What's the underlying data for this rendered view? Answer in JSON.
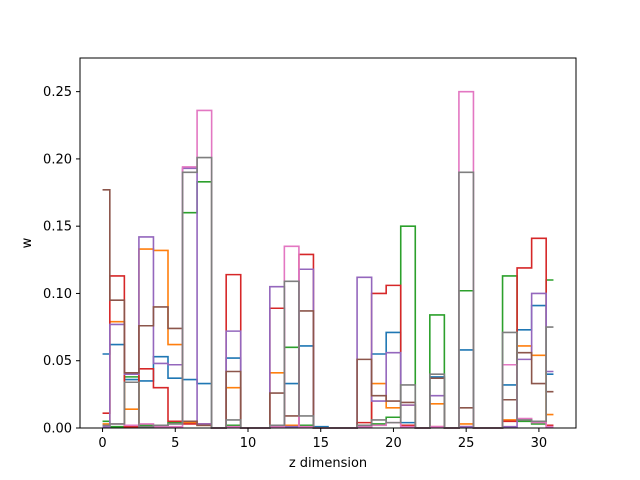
{
  "chart_data": {
    "type": "line",
    "drawstyle": "steps-mid",
    "xlabel": "z dimension",
    "ylabel": "w",
    "xlim": [
      -1.55,
      32.55
    ],
    "ylim": [
      0,
      0.275
    ],
    "xticks": [
      0,
      5,
      10,
      15,
      20,
      25,
      30
    ],
    "yticks": [
      0.0,
      0.05,
      0.1,
      0.15,
      0.2,
      0.25
    ],
    "ytick_labels": [
      "0.00",
      "0.05",
      "0.10",
      "0.15",
      "0.20",
      "0.25"
    ],
    "grid": false,
    "x": [
      0,
      1,
      2,
      3,
      4,
      5,
      6,
      7,
      8,
      9,
      10,
      11,
      12,
      13,
      14,
      15,
      16,
      17,
      18,
      19,
      20,
      21,
      22,
      23,
      24,
      25,
      26,
      27,
      28,
      29,
      30,
      31
    ],
    "series": [
      {
        "color": "#1f77b4",
        "values": [
          0.055,
          0.062,
          0.036,
          0.035,
          0.053,
          0.037,
          0.036,
          0.033,
          0,
          0.052,
          0,
          0,
          0.002,
          0.033,
          0.061,
          0.001,
          0,
          0,
          0.001,
          0.055,
          0.071,
          0.004,
          0,
          0.038,
          0,
          0.058,
          0,
          0,
          0.032,
          0.073,
          0.091,
          0.04
        ]
      },
      {
        "color": "#ff7f0e",
        "values": [
          0.003,
          0.079,
          0.014,
          0.133,
          0.132,
          0.062,
          0.004,
          0.002,
          0,
          0.03,
          0,
          0,
          0.041,
          0.002,
          0.001,
          0,
          0,
          0,
          0.001,
          0.033,
          0.015,
          0.017,
          0,
          0.018,
          0,
          0.003,
          0,
          0,
          0.006,
          0.061,
          0.054,
          0.01
        ]
      },
      {
        "color": "#2ca02c",
        "values": [
          0.005,
          0.001,
          0.038,
          0.002,
          0.002,
          0.004,
          0.16,
          0.183,
          0,
          0.002,
          0,
          0,
          0.001,
          0.06,
          0.002,
          0,
          0,
          0,
          0.001,
          0.003,
          0.008,
          0.15,
          0,
          0.084,
          0,
          0.102,
          0,
          0,
          0.113,
          0.005,
          0.003,
          0.11
        ]
      },
      {
        "color": "#d62728",
        "values": [
          0.011,
          0.113,
          0.001,
          0.044,
          0.03,
          0.005,
          0.003,
          0.003,
          0,
          0.114,
          0,
          0,
          0.089,
          0.001,
          0.129,
          0,
          0,
          0,
          0.004,
          0.1,
          0.106,
          0.002,
          0,
          0.001,
          0,
          0.001,
          0,
          0,
          0.005,
          0.119,
          0.141,
          0.002
        ]
      },
      {
        "color": "#9467bd",
        "values": [
          0.001,
          0.077,
          0.04,
          0.142,
          0.048,
          0.047,
          0.193,
          0.003,
          0,
          0.072,
          0,
          0,
          0.105,
          0.001,
          0.118,
          0,
          0,
          0,
          0.112,
          0.02,
          0.056,
          0.017,
          0,
          0.024,
          0,
          0.001,
          0,
          0,
          0.001,
          0.051,
          0.1,
          0.042
        ]
      },
      {
        "color": "#8c564b",
        "values": [
          0.177,
          0.095,
          0.041,
          0.076,
          0.09,
          0.074,
          0.005,
          0.002,
          0,
          0.042,
          0,
          0,
          0.026,
          0.009,
          0.087,
          0,
          0,
          0,
          0.051,
          0.024,
          0.02,
          0.019,
          0,
          0.037,
          0,
          0.015,
          0,
          0,
          0.021,
          0.056,
          0.033,
          0.027
        ]
      },
      {
        "color": "#e377c2",
        "values": [
          0.002,
          0.003,
          0.002,
          0.003,
          0.001,
          0.001,
          0.194,
          0.236,
          0,
          0.001,
          0,
          0,
          0.001,
          0.135,
          0.001,
          0,
          0,
          0,
          0.001,
          0.002,
          0.004,
          0.001,
          0,
          0.001,
          0,
          0.25,
          0,
          0,
          0.047,
          0.007,
          0.004,
          0.001
        ]
      },
      {
        "color": "#7f7f7f",
        "values": [
          0.002,
          0.003,
          0.034,
          0.001,
          0.002,
          0.003,
          0.19,
          0.201,
          0,
          0.006,
          0,
          0,
          0.002,
          0.109,
          0.009,
          0,
          0,
          0,
          0.002,
          0.006,
          0.004,
          0.032,
          0,
          0.04,
          0,
          0.19,
          0,
          0,
          0.071,
          0.006,
          0.005,
          0.075
        ]
      }
    ]
  }
}
